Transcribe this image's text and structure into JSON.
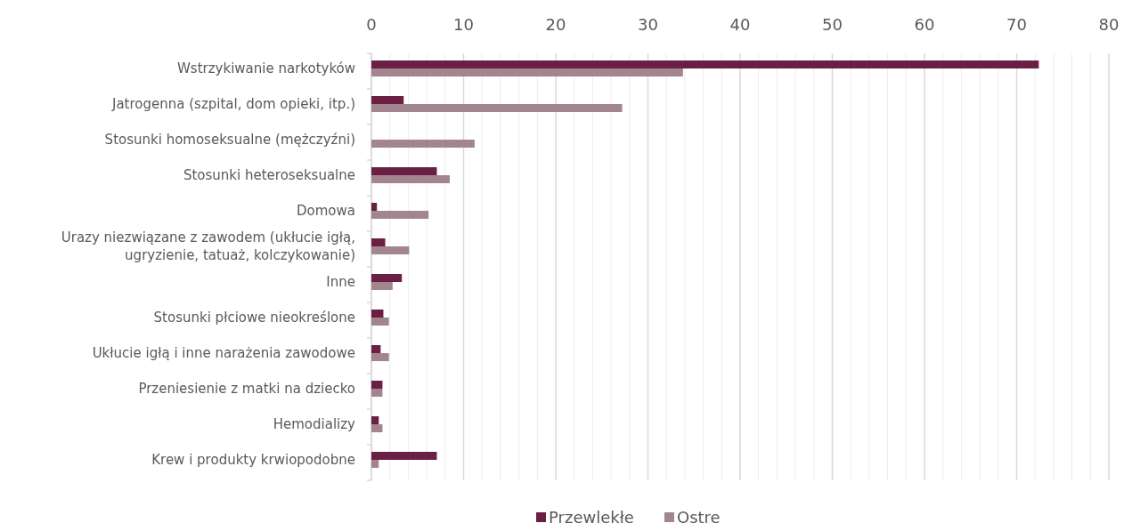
{
  "chart_data": {
    "type": "bar",
    "orientation": "horizontal",
    "categories": [
      "Wstrzykiwanie narkotyków",
      "Jatrogenna (szpital, dom opieki, itp.)",
      "Stosunki homoseksualne (mężczyźni)",
      "Stosunki heteroseksualne",
      "Domowa",
      "Urazy niezwiązane z zawodem (ukłucie igłą, ugryzienie, tatuaż, kolczykowanie)",
      "Inne",
      "Stosunki płciowe nieokreślone",
      "Ukłucie igłą i inne narażenia zawodowe",
      "Przeniesienie z matki na dziecko",
      "Hemodializy",
      "Krew i produkty krwiopodobne"
    ],
    "series": [
      {
        "name": "Przewlekłe",
        "color": "#6b1f45",
        "values": [
          72.4,
          3.5,
          null,
          7.1,
          0.6,
          1.5,
          3.3,
          1.3,
          1.0,
          1.2,
          0.8,
          7.1
        ]
      },
      {
        "name": "Ostre",
        "color": "#a3858f",
        "values": [
          33.8,
          27.2,
          11.2,
          8.5,
          6.2,
          4.1,
          2.3,
          1.9,
          1.9,
          1.2,
          1.2,
          0.8
        ]
      }
    ],
    "xlim": [
      0,
      80
    ],
    "xticks": [
      0,
      {
        "value": 2,
        "label": null
      },
      {
        "value": 4,
        "label": null
      },
      {
        "value": 6,
        "label": null
      },
      {
        "value": 8,
        "label": null
      },
      10,
      {
        "value": 12,
        "label": null
      },
      {
        "value": 14,
        "label": null
      },
      {
        "value": 16,
        "label": null
      },
      {
        "value": 18,
        "label": null
      },
      20,
      {
        "value": 22,
        "label": null
      },
      {
        "value": 24,
        "label": null
      },
      {
        "value": 26,
        "label": null
      },
      {
        "value": 28,
        "label": null
      },
      30,
      {
        "value": 32,
        "label": null
      },
      {
        "value": 34,
        "label": null
      },
      {
        "value": 36,
        "label": null
      },
      {
        "value": 38,
        "label": null
      },
      40,
      {
        "value": 42,
        "label": null
      },
      {
        "value": 44,
        "label": null
      },
      {
        "value": 46,
        "label": null
      },
      {
        "value": 48,
        "label": null
      },
      50,
      {
        "value": 52,
        "label": null
      },
      {
        "value": 54,
        "label": null
      },
      {
        "value": 56,
        "label": null
      },
      {
        "value": 58,
        "label": null
      },
      60,
      {
        "value": 62,
        "label": null
      },
      {
        "value": 64,
        "label": null
      },
      {
        "value": 66,
        "label": null
      },
      {
        "value": 68,
        "label": null
      },
      70,
      {
        "value": 72,
        "label": null
      },
      {
        "value": 74,
        "label": null
      },
      {
        "value": 76,
        "label": null
      },
      {
        "value": 78,
        "label": null
      },
      80
    ],
    "grid": true,
    "legend": "bottom"
  }
}
